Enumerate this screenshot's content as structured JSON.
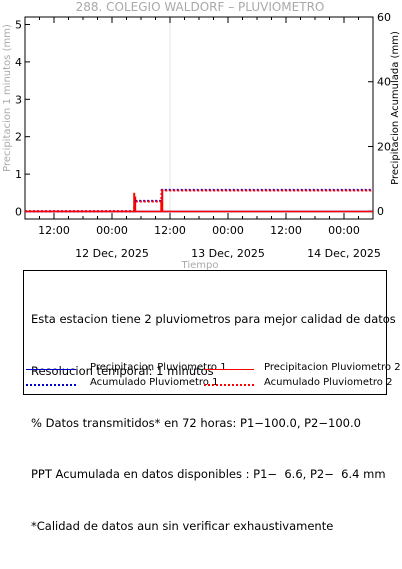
{
  "chart_data": {
    "type": "line",
    "title": "288. COLEGIO WALDORF – PLUVIOMETRO",
    "xlabel": "Tiempo",
    "ylabel_left": "Precipitacion 1 minutos (mm)",
    "ylabel_right": "Precipitacion Acumulada (mm)",
    "x_range_hours": [
      0,
      72
    ],
    "ylim_left": [
      -0.2,
      5.2
    ],
    "ylim_right": [
      -2.4,
      60
    ],
    "left_ticks": [
      0,
      1,
      2,
      3,
      4,
      5
    ],
    "right_ticks": [
      0,
      20,
      40,
      60
    ],
    "x_ticks": [
      {
        "hour": 6,
        "label": "12:00"
      },
      {
        "hour": 18,
        "label": "00:00"
      },
      {
        "hour": 30,
        "label": "12:00"
      },
      {
        "hour": 42,
        "label": "00:00"
      },
      {
        "hour": 54,
        "label": "12:00"
      },
      {
        "hour": 66,
        "label": "00:00"
      }
    ],
    "date_labels": [
      {
        "hour": 18,
        "label": "12 Dec, 2025"
      },
      {
        "hour": 42,
        "label": "13 Dec, 2025"
      },
      {
        "hour": 66,
        "label": "14 Dec, 2025"
      }
    ],
    "series": [
      {
        "name": "Precipitacion Pluviometro 1",
        "axis": "left",
        "color": "#0000cc",
        "style": "solid",
        "points": [
          [
            0,
            0
          ],
          [
            72,
            0
          ]
        ]
      },
      {
        "name": "Precipitacion Pluviometro 2",
        "axis": "left",
        "color": "#ff0000",
        "style": "solid",
        "points": [
          [
            0,
            0
          ],
          [
            72,
            0
          ]
        ],
        "spikes": [
          [
            22.6,
            0.5
          ],
          [
            22.8,
            0.4
          ],
          [
            28.2,
            0.3
          ],
          [
            28.4,
            0.6
          ]
        ]
      },
      {
        "name": "Acumulado Pluviometro 1",
        "axis": "right",
        "color": "#0000cc",
        "style": "dotted",
        "points": [
          [
            0,
            0
          ],
          [
            22.6,
            0
          ],
          [
            22.7,
            3.2
          ],
          [
            28.2,
            3.2
          ],
          [
            28.3,
            6.6
          ],
          [
            72,
            6.6
          ]
        ]
      },
      {
        "name": "Acumulado Pluviometro 2",
        "axis": "right",
        "color": "#ff0000",
        "style": "dotted",
        "points": [
          [
            0,
            0
          ],
          [
            22.6,
            0
          ],
          [
            22.7,
            3.0
          ],
          [
            28.2,
            3.0
          ],
          [
            28.3,
            6.4
          ],
          [
            72,
            6.4
          ]
        ]
      }
    ],
    "legend_position": "bottom"
  },
  "info": {
    "lines": [
      "Esta estacion tiene 2 pluviometros para mejor calidad de datos",
      "Resolucion temporal: 1 minutos",
      "% Datos transmitidos* en 72 horas: P1−100.0, P2−100.0",
      "PPT Acumulada en datos disponibles : P1−  6.6, P2−  6.4 mm",
      "*Calidad de datos aun sin verificar exhaustivamente"
    ]
  },
  "legend": [
    {
      "label": "Precipitacion Pluviometro 1",
      "color": "#0000cc",
      "style": "solid"
    },
    {
      "label": "Precipitacion Pluviometro 2",
      "color": "#ff0000",
      "style": "solid"
    },
    {
      "label": "Acumulado Pluviometro 1",
      "color": "#0000cc",
      "style": "dotted"
    },
    {
      "label": "Acumulado Pluviometro 2",
      "color": "#ff0000",
      "style": "dotted"
    }
  ]
}
